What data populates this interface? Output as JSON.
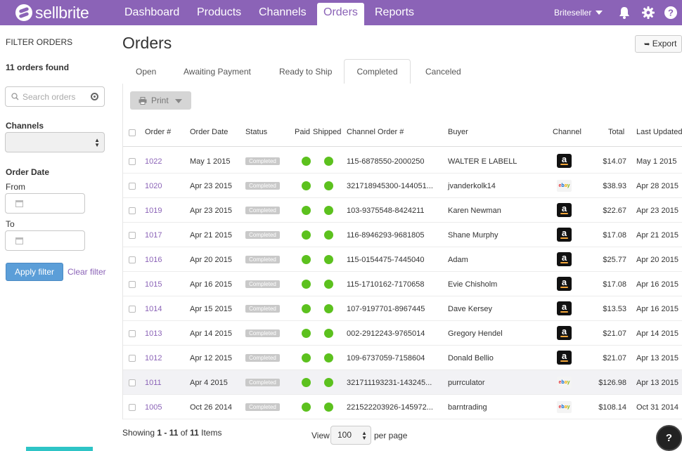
{
  "app": {
    "brand": "sellbrite",
    "nav": [
      {
        "label": "Dashboard"
      },
      {
        "label": "Products"
      },
      {
        "label": "Channels"
      },
      {
        "label": "Orders",
        "active": true
      },
      {
        "label": "Reports"
      }
    ],
    "user": "Briteseller",
    "icons": [
      "bell-icon",
      "gear-icon",
      "help-icon"
    ],
    "accent_color": "#8b63b7"
  },
  "sidebar": {
    "title": "FILTER ORDERS",
    "count_text": "11 orders found",
    "search_placeholder": "Search orders",
    "channels_label": "Channels",
    "channels_value": "",
    "order_date_label": "Order Date",
    "from_label": "From",
    "to_label": "To",
    "apply_label": "Apply filter",
    "clear_label": "Clear filter"
  },
  "main": {
    "title": "Orders",
    "export_label": "Export",
    "tabs": [
      {
        "label": "Open"
      },
      {
        "label": "Awaiting Payment"
      },
      {
        "label": "Ready to Ship"
      },
      {
        "label": "Completed",
        "active": true
      },
      {
        "label": "Canceled"
      }
    ],
    "print_label": "Print",
    "columns": [
      "Order #",
      "Order Date",
      "Status",
      "Paid",
      "Shipped",
      "Channel Order #",
      "Buyer",
      "Channel",
      "Total",
      "Last Updated"
    ],
    "orders": [
      {
        "id": "1022",
        "date": "May 1 2015",
        "status": "Completed",
        "paid": true,
        "shipped": true,
        "channel_order": "115-6878550-2000250",
        "buyer": "WALTER E LABELL",
        "channel": "amazon",
        "total": "$14.07",
        "updated": "May 1 2015"
      },
      {
        "id": "1020",
        "date": "Apr 23 2015",
        "status": "Completed",
        "paid": true,
        "shipped": true,
        "channel_order": "321718945300-144051...",
        "buyer": "jvanderkolk14",
        "channel": "ebay",
        "total": "$38.93",
        "updated": "Apr 28 2015"
      },
      {
        "id": "1019",
        "date": "Apr 23 2015",
        "status": "Completed",
        "paid": true,
        "shipped": true,
        "channel_order": "103-9375548-8424211",
        "buyer": "Karen Newman",
        "channel": "amazon",
        "total": "$22.67",
        "updated": "Apr 23 2015"
      },
      {
        "id": "1017",
        "date": "Apr 21 2015",
        "status": "Completed",
        "paid": true,
        "shipped": true,
        "channel_order": "116-8946293-9681805",
        "buyer": "Shane Murphy",
        "channel": "amazon",
        "total": "$17.08",
        "updated": "Apr 21 2015"
      },
      {
        "id": "1016",
        "date": "Apr 20 2015",
        "status": "Completed",
        "paid": true,
        "shipped": true,
        "channel_order": "115-0154475-7445040",
        "buyer": "Adam",
        "channel": "amazon",
        "total": "$25.77",
        "updated": "Apr 20 2015"
      },
      {
        "id": "1015",
        "date": "Apr 16 2015",
        "status": "Completed",
        "paid": true,
        "shipped": true,
        "channel_order": "115-1710162-7170658",
        "buyer": "Evie Chisholm",
        "channel": "amazon",
        "total": "$17.08",
        "updated": "Apr 16 2015"
      },
      {
        "id": "1014",
        "date": "Apr 15 2015",
        "status": "Completed",
        "paid": true,
        "shipped": true,
        "channel_order": "107-9197701-8967445",
        "buyer": "Dave Kersey",
        "channel": "amazon",
        "total": "$13.53",
        "updated": "Apr 16 2015"
      },
      {
        "id": "1013",
        "date": "Apr 14 2015",
        "status": "Completed",
        "paid": true,
        "shipped": true,
        "channel_order": "002-2912243-9765014",
        "buyer": "Gregory Hendel",
        "channel": "amazon",
        "total": "$21.07",
        "updated": "Apr 14 2015"
      },
      {
        "id": "1012",
        "date": "Apr 12 2015",
        "status": "Completed",
        "paid": true,
        "shipped": true,
        "channel_order": "109-6737059-7158604",
        "buyer": "Donald Bellio",
        "channel": "amazon",
        "total": "$21.07",
        "updated": "Apr 13 2015"
      },
      {
        "id": "1011",
        "date": "Apr 4 2015",
        "status": "Completed",
        "paid": true,
        "shipped": true,
        "channel_order": "321711193231-143245...",
        "buyer": "purrculator",
        "channel": "ebay",
        "total": "$126.98",
        "updated": "Apr 13 2015"
      },
      {
        "id": "1005",
        "date": "Oct 26 2014",
        "status": "Completed",
        "paid": true,
        "shipped": true,
        "channel_order": "221522203926-145972...",
        "buyer": "barntrading",
        "channel": "ebay",
        "total": "$108.14",
        "updated": "Oct 31 2014"
      }
    ],
    "footer": {
      "showing_prefix": "Showing ",
      "range": "1 - 11",
      "of": " of ",
      "total": "11",
      "items": " Items",
      "view_label": "View",
      "per_page_value": "100",
      "per_page_label": "per page"
    },
    "status_color": "#5cc11e"
  }
}
